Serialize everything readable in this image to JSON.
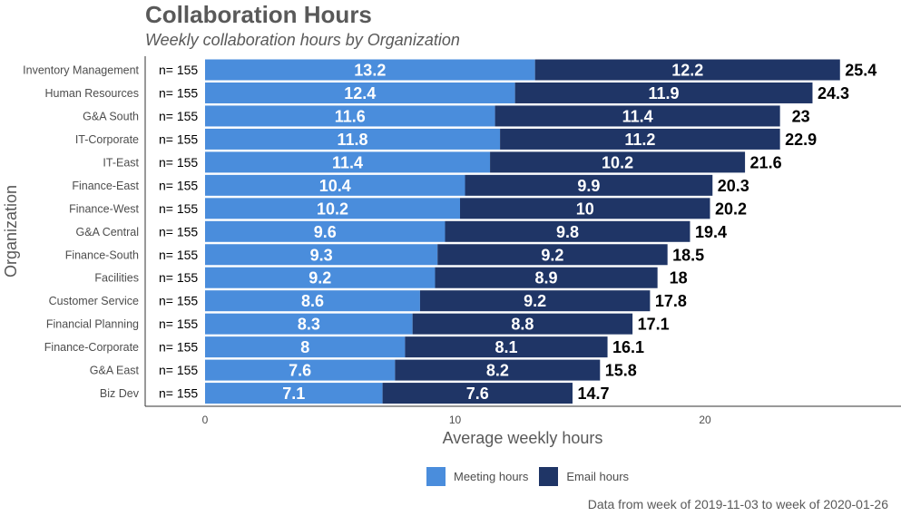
{
  "colors": {
    "meeting": "#4a8ddc",
    "email": "#1f3566",
    "axis": "#595959",
    "text": "#4d4d4d"
  },
  "chart_data": {
    "type": "bar",
    "orientation": "horizontal",
    "stacked": true,
    "title": "Collaboration Hours",
    "subtitle": "Weekly collaboration hours by Organization",
    "xlabel": "Average weekly hours",
    "ylabel": "Organization",
    "xlim": [
      0,
      28
    ],
    "xticks": [
      0,
      10,
      20
    ],
    "categories": [
      "Inventory Management",
      "Human Resources",
      "G&A South",
      "IT-Corporate",
      "IT-East",
      "Finance-East",
      "Finance-West",
      "G&A Central",
      "Finance-South",
      "Facilities",
      "Customer Service",
      "Financial Planning",
      "Finance-Corporate",
      "G&A East",
      "Biz Dev"
    ],
    "n_labels": [
      "n= 155",
      "n= 155",
      "n= 155",
      "n= 155",
      "n= 155",
      "n= 155",
      "n= 155",
      "n= 155",
      "n= 155",
      "n= 155",
      "n= 155",
      "n= 155",
      "n= 155",
      "n= 155",
      "n= 155"
    ],
    "series": [
      {
        "name": "Meeting hours",
        "values": [
          13.2,
          12.4,
          11.6,
          11.8,
          11.4,
          10.4,
          10.2,
          9.6,
          9.3,
          9.2,
          8.6,
          8.3,
          8,
          7.6,
          7.1
        ]
      },
      {
        "name": "Email hours",
        "values": [
          12.2,
          11.9,
          11.4,
          11.2,
          10.2,
          9.9,
          10,
          9.8,
          9.2,
          8.9,
          9.2,
          8.8,
          8.1,
          8.2,
          7.6
        ]
      }
    ],
    "totals": [
      25.4,
      24.3,
      23,
      22.9,
      21.6,
      20.3,
      20.2,
      19.4,
      18.5,
      18,
      17.8,
      17.1,
      16.1,
      15.8,
      14.7
    ],
    "legend": [
      "Meeting hours",
      "Email hours"
    ],
    "legend_position": "bottom",
    "grid": false
  },
  "caption": "Data from week of 2019-11-03 to week of 2020-01-26"
}
